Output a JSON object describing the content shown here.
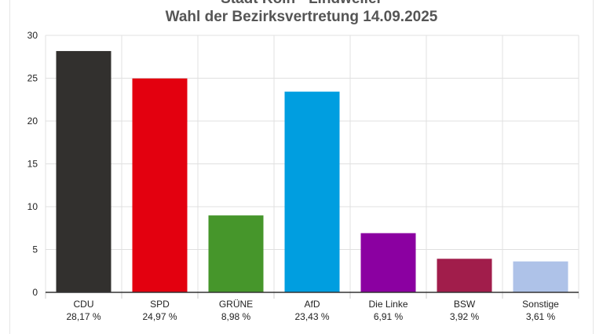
{
  "chart_data": {
    "type": "bar",
    "title": "Stadt Köln - Lindweiler",
    "subtitle": "Wahl der Bezirksvertretung 14.09.2025",
    "categories": [
      "CDU",
      "SPD",
      "GRÜNE",
      "AfD",
      "Die Linke",
      "BSW",
      "Sonstige"
    ],
    "values": [
      28.17,
      24.97,
      8.98,
      23.43,
      6.91,
      3.92,
      3.61
    ],
    "value_labels": [
      "28,17 %",
      "24,97 %",
      "8,98 %",
      "23,43 %",
      "6,91 %",
      "3,92 %",
      "3,61 %"
    ],
    "colors": [
      "#32302e",
      "#e3000f",
      "#46962b",
      "#009ee0",
      "#8b00a1",
      "#a11d4b",
      "#aec2e8"
    ],
    "ylim": [
      0,
      30
    ],
    "yticks": [
      0,
      5,
      10,
      15,
      20,
      25,
      30
    ],
    "grid": true,
    "xlabel": "",
    "ylabel": ""
  }
}
